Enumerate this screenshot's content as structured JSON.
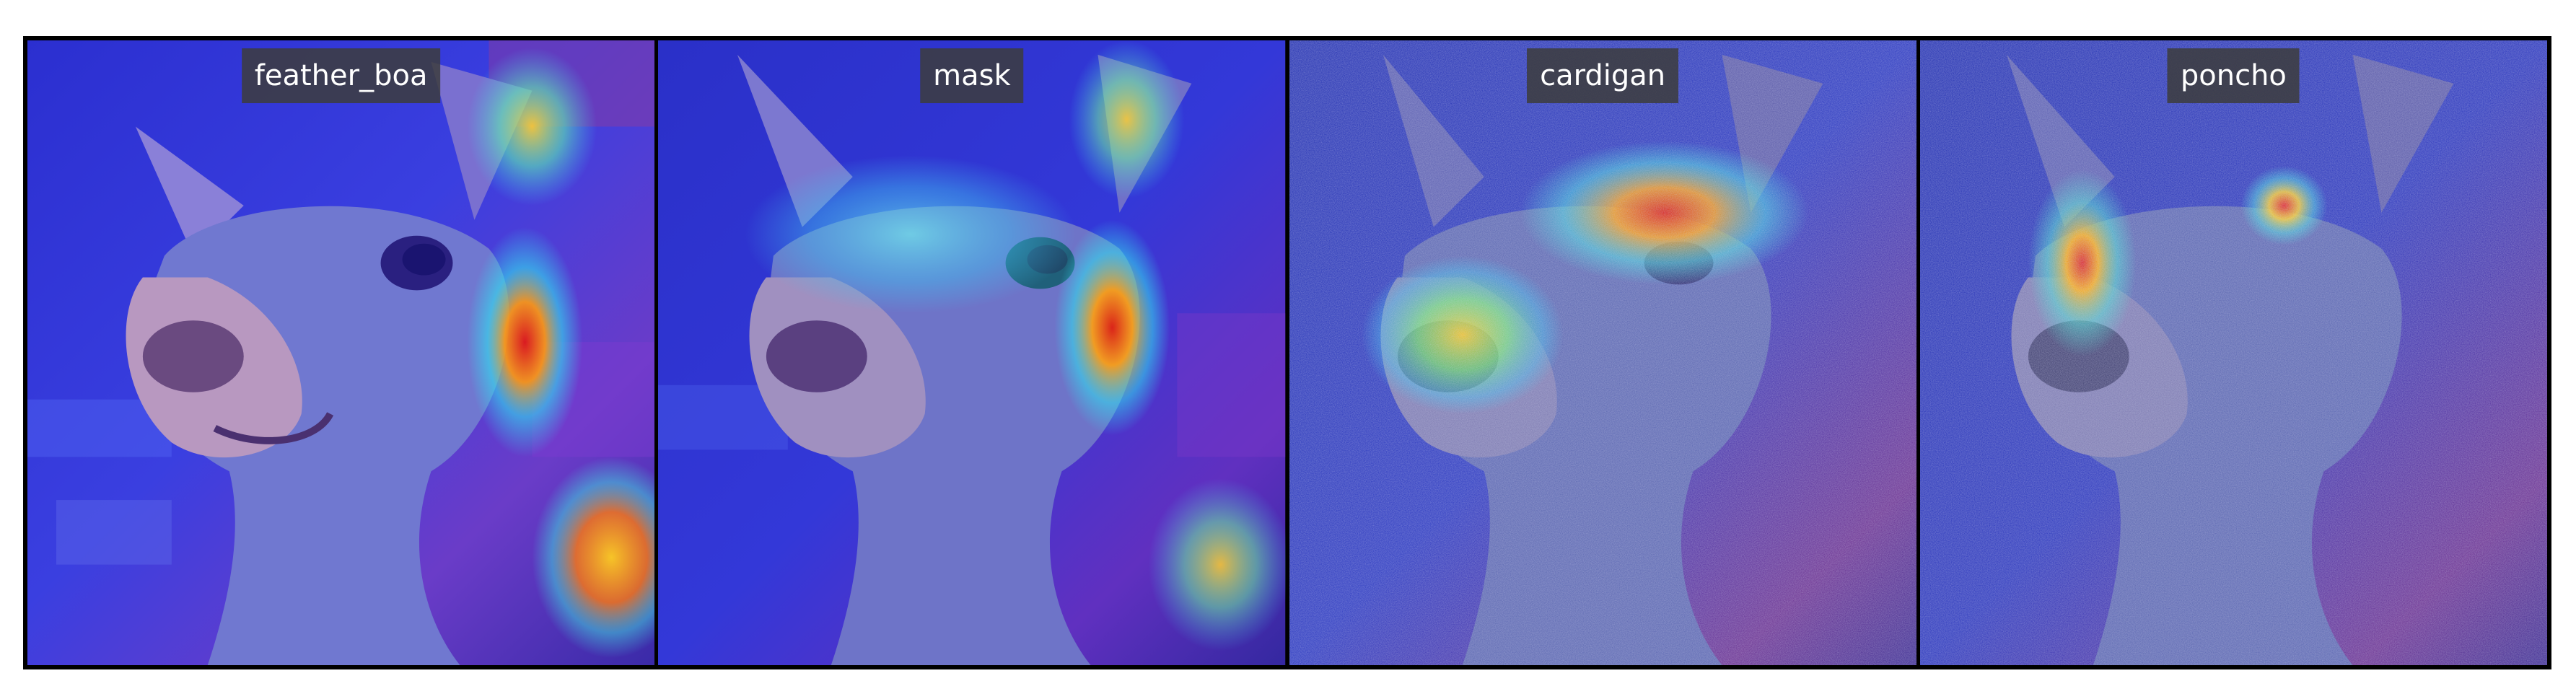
{
  "panels": [
    {
      "label": "feather_boa",
      "heat": "right-ear-and-right-edge",
      "noise": false
    },
    {
      "label": "mask",
      "heat": "right-ear-and-cheek",
      "noise": false
    },
    {
      "label": "cardigan",
      "heat": "forehead-and-muzzle",
      "noise": true
    },
    {
      "label": "poncho",
      "heat": "eye-spots",
      "noise": true
    }
  ]
}
